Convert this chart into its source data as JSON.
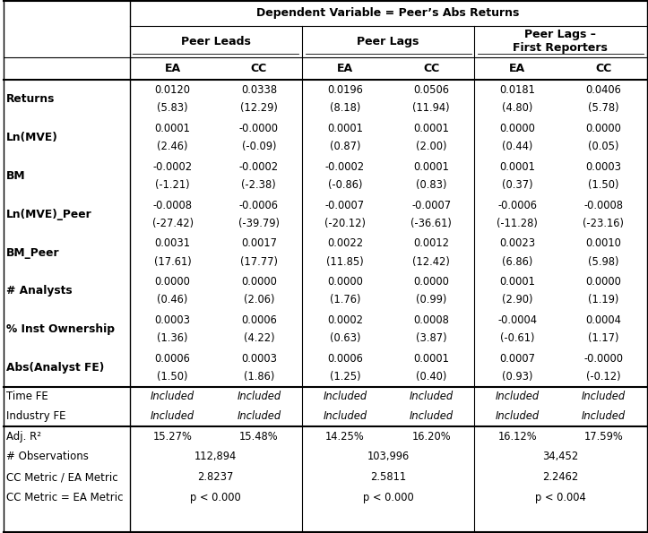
{
  "title": "Dependent Variable = Peer’s Abs Returns",
  "col_groups": [
    "Peer Leads",
    "Peer Lags",
    "Peer Lags –\nFirst Reporters"
  ],
  "sub_cols": [
    "EA",
    "CC",
    "EA",
    "CC",
    "EA",
    "CC"
  ],
  "row_labels": [
    "Returns",
    "Ln(MVE)",
    "BM",
    "Ln(MVE)_Peer",
    "BM_Peer",
    "# Analysts",
    "% Inst Ownership",
    "Abs(Analyst FE)"
  ],
  "cell_data": [
    [
      "0.0120",
      "(5.83)",
      "0.0338",
      "(12.29)",
      "0.0196",
      "(8.18)",
      "0.0506",
      "(11.94)",
      "0.0181",
      "(4.80)",
      "0.0406",
      "(5.78)"
    ],
    [
      "0.0001",
      "(2.46)",
      "-0.0000",
      "(-0.09)",
      "0.0001",
      "(0.87)",
      "0.0001",
      "(2.00)",
      "0.0000",
      "(0.44)",
      "0.0000",
      "(0.05)"
    ],
    [
      "-0.0002",
      "(-1.21)",
      "-0.0002",
      "(-2.38)",
      "-0.0002",
      "(-0.86)",
      "0.0001",
      "(0.83)",
      "0.0001",
      "(0.37)",
      "0.0003",
      "(1.50)"
    ],
    [
      "-0.0008",
      "(-27.42)",
      "-0.0006",
      "(-39.79)",
      "-0.0007",
      "(-20.12)",
      "-0.0007",
      "(-36.61)",
      "-0.0006",
      "(-11.28)",
      "-0.0008",
      "(-23.16)"
    ],
    [
      "0.0031",
      "(17.61)",
      "0.0017",
      "(17.77)",
      "0.0022",
      "(11.85)",
      "0.0012",
      "(12.42)",
      "0.0023",
      "(6.86)",
      "0.0010",
      "(5.98)"
    ],
    [
      "0.0000",
      "(0.46)",
      "0.0000",
      "(2.06)",
      "0.0000",
      "(1.76)",
      "0.0000",
      "(0.99)",
      "0.0001",
      "(2.90)",
      "0.0000",
      "(1.19)"
    ],
    [
      "0.0003",
      "(1.36)",
      "0.0006",
      "(4.22)",
      "0.0002",
      "(0.63)",
      "0.0008",
      "(3.87)",
      "-0.0004",
      "(-0.61)",
      "0.0004",
      "(1.17)"
    ],
    [
      "0.0006",
      "(1.50)",
      "0.0003",
      "(1.86)",
      "0.0006",
      "(1.25)",
      "0.0001",
      "(0.40)",
      "0.0007",
      "(0.93)",
      "-0.0000",
      "(-0.12)"
    ]
  ],
  "fe_rows": [
    [
      "Time FE",
      "Included",
      "Included",
      "Included",
      "Included",
      "Included",
      "Included"
    ],
    [
      "Industry FE",
      "Included",
      "Included",
      "Included",
      "Included",
      "Included",
      "Included"
    ]
  ],
  "stat_rows": [
    [
      "Adj. R²",
      "15.27%",
      "15.48%",
      "14.25%",
      "16.20%",
      "16.12%",
      "17.59%"
    ],
    [
      "# Observations",
      "112,894",
      "",
      "103,996",
      "",
      "34,452",
      ""
    ],
    [
      "CC Metric / EA Metric",
      "2.8237",
      "",
      "2.5811",
      "",
      "2.2462",
      ""
    ],
    [
      "CC Metric = EA Metric",
      "p < 0.000",
      "",
      "p < 0.000",
      "",
      "p < 0.004",
      ""
    ]
  ],
  "bg_color": "#ffffff",
  "text_color": "#000000"
}
